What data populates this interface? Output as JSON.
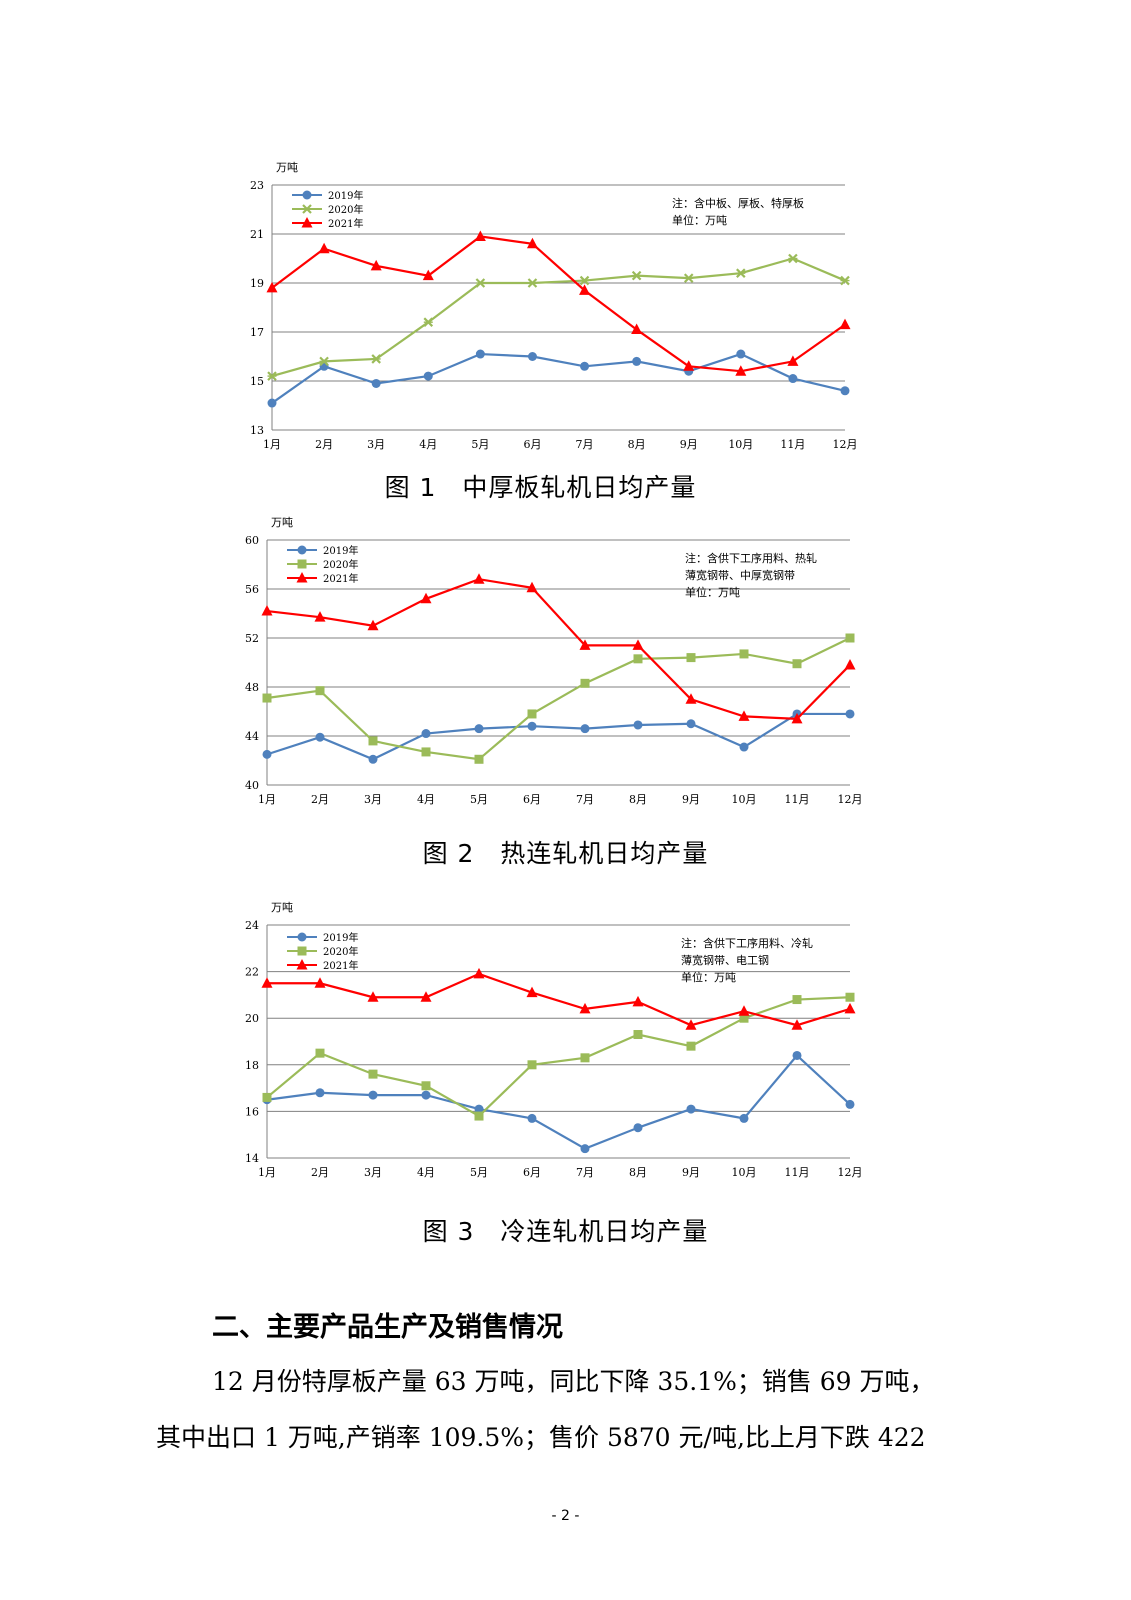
{
  "chart_data": [
    {
      "type": "line",
      "ylabel": "万吨",
      "ylim": [
        13,
        23
      ],
      "yticks": [
        13,
        15,
        17,
        19,
        21,
        23
      ],
      "categories": [
        "1月",
        "2月",
        "3月",
        "4月",
        "5月",
        "6月",
        "7月",
        "8月",
        "9月",
        "10月",
        "11月",
        "12月"
      ],
      "note": [
        "注：含中板、厚板、特厚板",
        "单位：万吨"
      ],
      "grid": true,
      "legend": "top-left",
      "series": [
        {
          "name": "2019年",
          "color": "#4F81BD",
          "marker": "circle",
          "values": [
            14.1,
            15.6,
            14.9,
            15.2,
            16.1,
            16.0,
            15.6,
            15.8,
            15.4,
            16.1,
            15.1,
            14.6
          ]
        },
        {
          "name": "2020年",
          "color": "#9BBB59",
          "marker": "x",
          "values": [
            15.2,
            15.8,
            15.9,
            17.4,
            19.0,
            19.0,
            19.1,
            19.3,
            19.2,
            19.4,
            20.0,
            19.1
          ]
        },
        {
          "name": "2021年",
          "color": "#FF0000",
          "marker": "triangle",
          "values": [
            18.8,
            20.4,
            19.7,
            19.3,
            20.9,
            20.6,
            18.7,
            17.1,
            15.6,
            15.4,
            15.8,
            17.3
          ]
        }
      ]
    },
    {
      "type": "line",
      "ylabel": "万吨",
      "ylim": [
        40,
        60
      ],
      "yticks": [
        40,
        44,
        48,
        52,
        56,
        60
      ],
      "categories": [
        "1月",
        "2月",
        "3月",
        "4月",
        "5月",
        "6月",
        "7月",
        "8月",
        "9月",
        "10月",
        "11月",
        "12月"
      ],
      "note": [
        "注：含供下工序用料、热轧",
        "薄宽钢带、中厚宽钢带",
        "单位：万吨"
      ],
      "grid": true,
      "legend": "top-left",
      "series": [
        {
          "name": "2019年",
          "color": "#4F81BD",
          "marker": "circle",
          "values": [
            42.5,
            43.9,
            42.1,
            44.2,
            44.6,
            44.8,
            44.6,
            44.9,
            45.0,
            43.1,
            45.8,
            45.8
          ]
        },
        {
          "name": "2020年",
          "color": "#9BBB59",
          "marker": "square",
          "values": [
            47.1,
            47.7,
            43.6,
            42.7,
            42.1,
            45.8,
            48.3,
            50.3,
            50.4,
            50.7,
            49.9,
            52.0
          ]
        },
        {
          "name": "2021年",
          "color": "#FF0000",
          "marker": "triangle",
          "values": [
            54.2,
            53.7,
            53.0,
            55.2,
            56.8,
            56.1,
            51.4,
            51.4,
            47.0,
            45.6,
            45.4,
            49.8
          ]
        }
      ]
    },
    {
      "type": "line",
      "ylabel": "万吨",
      "ylim": [
        14,
        24
      ],
      "yticks": [
        14,
        16,
        18,
        20,
        22,
        24
      ],
      "categories": [
        "1月",
        "2月",
        "3月",
        "4月",
        "5月",
        "6月",
        "7月",
        "8月",
        "9月",
        "10月",
        "11月",
        "12月"
      ],
      "note": [
        "注：含供下工序用料、冷轧",
        "薄宽钢带、电工钢",
        "单位：万吨"
      ],
      "grid": true,
      "legend": "top-left",
      "series": [
        {
          "name": "2019年",
          "color": "#4F81BD",
          "marker": "circle",
          "values": [
            16.5,
            16.8,
            16.7,
            16.7,
            16.1,
            15.7,
            14.4,
            15.3,
            16.1,
            15.7,
            18.4,
            16.3
          ]
        },
        {
          "name": "2020年",
          "color": "#9BBB59",
          "marker": "square",
          "values": [
            16.6,
            18.5,
            17.6,
            17.1,
            15.8,
            18.0,
            18.3,
            19.3,
            18.8,
            20.0,
            20.8,
            20.9
          ]
        },
        {
          "name": "2021年",
          "color": "#FF0000",
          "marker": "triangle",
          "values": [
            21.5,
            21.5,
            20.9,
            20.9,
            21.9,
            21.1,
            20.4,
            20.7,
            19.7,
            20.3,
            19.7,
            20.4
          ]
        }
      ]
    }
  ],
  "captions": [
    "图 1　中厚板轧机日均产量",
    "图 2　热连轧机日均产量",
    "图 3　冷连轧机日均产量"
  ],
  "section_heading": "二、主要产品生产及销售情况",
  "paragraph": {
    "line1": "12 月份特厚板产量 63 万吨，同比下降 35.1%；销售 69 万吨，",
    "line2": "其中出口 1 万吨,产销率 109.5%；售价 5870 元/吨,比上月下跌 422"
  },
  "page_number": "- 2 -"
}
